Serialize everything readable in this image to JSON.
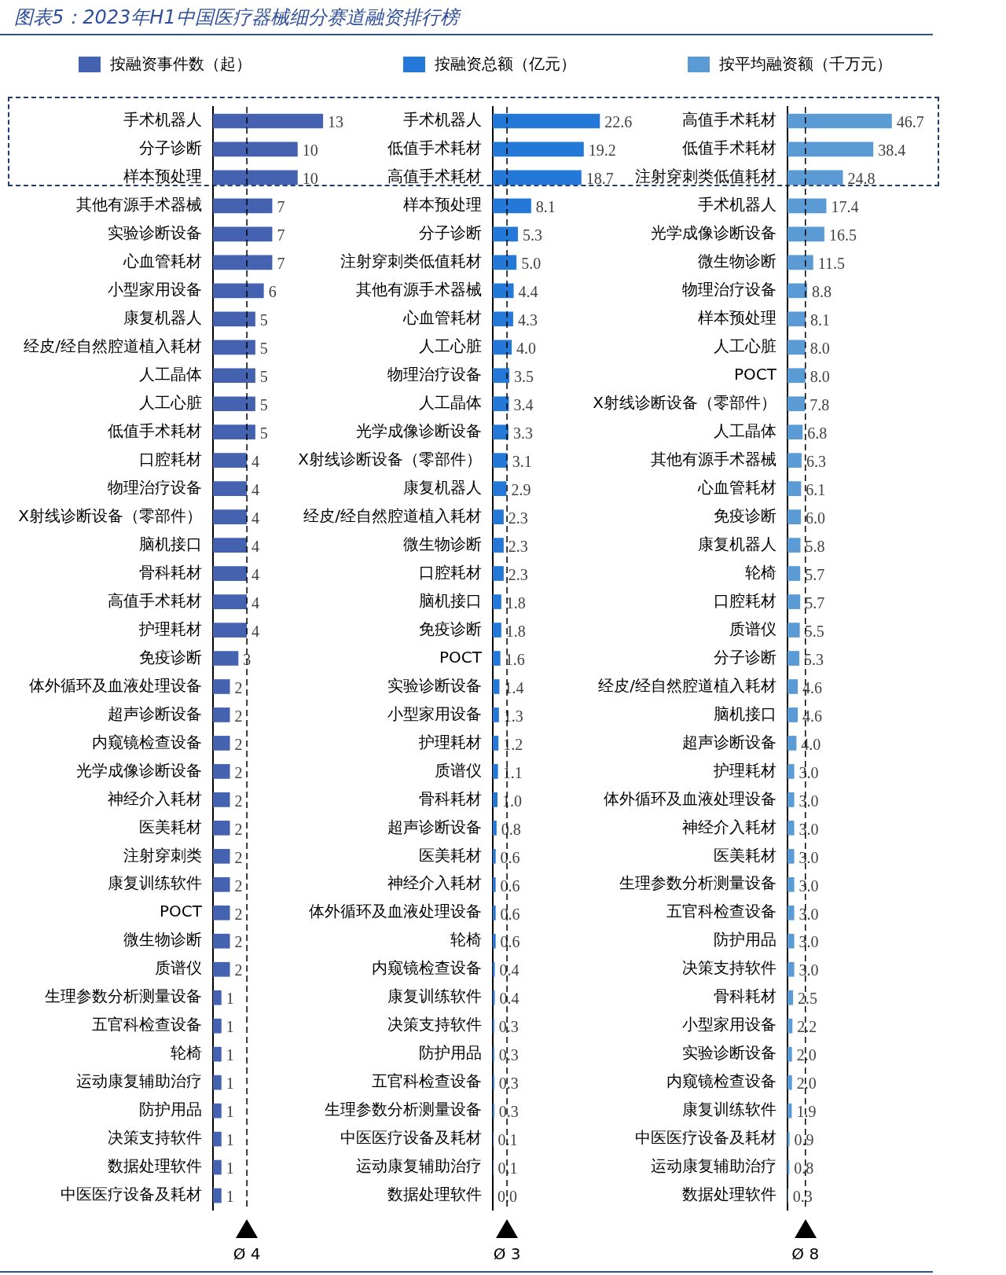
{
  "chart_data": [
    {
      "type": "bar",
      "orientation": "horizontal",
      "title": "图表5：2023年H1中国医疗器械细分赛道融资排行榜",
      "legend": "top",
      "tick_labels": "y",
      "data_labels": true,
      "categories": [
        "手术机器人",
        "分子诊断",
        "样本预处理",
        "其他有源手术器械",
        "实验诊断设备",
        "心血管耗材",
        "小型家用设备",
        "康复机器人",
        "经皮/经自然腔道植入耗材",
        "人工晶体",
        "人工心脏",
        "低值手术耗材",
        "口腔耗材",
        "物理治疗设备",
        "X射线诊断设备（零部件）",
        "脑机接口",
        "骨科耗材",
        "高值手术耗材",
        "护理耗材",
        "免疫诊断",
        "体外循环及血液处理设备",
        "超声诊断设备",
        "内窥镜检查设备",
        "光学成像诊断设备",
        "神经介入耗材",
        "医美耗材",
        "注射穿刺类",
        "康复训练软件",
        "POCT",
        "微生物诊断",
        "质谱仪",
        "生理参数分析测量设备",
        "五官科检查设备",
        "轮椅",
        "运动康复辅助治疗",
        "防护用品",
        "决策支持软件",
        "数据处理软件",
        "中医医疗设备及耗材"
      ],
      "series": [
        {
          "name": "按融资事件数（起）",
          "color": "#4462b0",
          "values": [
            13,
            10,
            10,
            7,
            7,
            7,
            6,
            5,
            5,
            5,
            5,
            5,
            4,
            4,
            4,
            4,
            4,
            4,
            4,
            3,
            2,
            2,
            2,
            2,
            2,
            2,
            2,
            2,
            2,
            2,
            2,
            1,
            1,
            1,
            1,
            1,
            1,
            1,
            1
          ]
        }
      ],
      "ref_lines": [
        {
          "axis": "x",
          "value": 4,
          "label": "Ø 4",
          "line_style": "dashed"
        }
      ]
    },
    {
      "type": "bar",
      "orientation": "horizontal",
      "legend": "top",
      "tick_labels": "y",
      "categories": [
        "手术机器人",
        "低值手术耗材",
        "高值手术耗材",
        "样本预处理",
        "分子诊断",
        "注射穿刺类低值耗材",
        "其他有源手术器械",
        "心血管耗材",
        "人工心脏",
        "物理治疗设备",
        "人工晶体",
        "光学成像诊断设备",
        "X射线诊断设备（零部件）",
        "康复机器人",
        "经皮/经自然腔道植入耗材",
        "微生物诊断",
        "口腔耗材",
        "脑机接口",
        "免疫诊断",
        "POCT",
        "实验诊断设备",
        "小型家用设备",
        "护理耗材",
        "质谱仪",
        "骨科耗材",
        "超声诊断设备",
        "医美耗材",
        "神经介入耗材",
        "体外循环及血液处理设备",
        "轮椅",
        "内窥镜检查设备",
        "康复训练软件",
        "决策支持软件",
        "防护用品",
        "五官科检查设备",
        "生理参数分析测量设备",
        "中医医疗设备及耗材",
        "运动康复辅助治疗",
        "数据处理软件"
      ],
      "series": [
        {
          "name": "按融资总额（亿元）",
          "color": "#2478d8",
          "values": [
            22.6,
            19.2,
            18.7,
            8.1,
            5.3,
            5.0,
            4.4,
            4.3,
            4.0,
            3.5,
            3.4,
            3.3,
            3.1,
            2.9,
            2.3,
            2.3,
            2.3,
            1.8,
            1.8,
            1.6,
            1.4,
            1.3,
            1.2,
            1.1,
            1.0,
            0.8,
            0.6,
            0.6,
            0.6,
            0.6,
            0.4,
            0.4,
            0.3,
            0.3,
            0.3,
            0.3,
            0.1,
            0.1,
            0.0
          ],
          "value_labels": [
            "22.6",
            "19.2",
            "18.7",
            "8.1",
            "5.3",
            "5.0",
            "4.4",
            "4.3",
            "4.0",
            "3.5",
            "3.4",
            "3.3",
            "3.1",
            "2.9",
            "2.3",
            "2.3",
            "2.3",
            "1.8",
            "1.8",
            "1.6",
            "1.4",
            "1.3",
            "1.2",
            "1.1",
            "1.0",
            "0.8",
            "0.6",
            "0.6",
            "0.6",
            "0.6",
            "0.4",
            "0.4",
            "0.3",
            "0.3",
            "0.3",
            "0.3",
            "0.1",
            "0.1",
            "0.0"
          ]
        }
      ],
      "ref_lines": [
        {
          "axis": "x",
          "value": 3,
          "label": "Ø 3",
          "line_style": "dashed"
        }
      ]
    },
    {
      "type": "bar",
      "orientation": "horizontal",
      "legend": "top",
      "tick_labels": "y",
      "categories": [
        "高值手术耗材",
        "低值手术耗材",
        "注射穿刺类低值耗材",
        "手术机器人",
        "光学成像诊断设备",
        "微生物诊断",
        "物理治疗设备",
        "样本预处理",
        "人工心脏",
        "POCT",
        "X射线诊断设备（零部件）",
        "人工晶体",
        "其他有源手术器械",
        "心血管耗材",
        "免疫诊断",
        "康复机器人",
        "轮椅",
        "口腔耗材",
        "质谱仪",
        "分子诊断",
        "经皮/经自然腔道植入耗材",
        "脑机接口",
        "超声诊断设备",
        "护理耗材",
        "体外循环及血液处理设备",
        "神经介入耗材",
        "医美耗材",
        "生理参数分析测量设备",
        "五官科检查设备",
        "防护用品",
        "决策支持软件",
        "骨科耗材",
        "小型家用设备",
        "实验诊断设备",
        "内窥镜检查设备",
        "康复训练软件",
        "中医医疗设备及耗材",
        "运动康复辅助治疗",
        "数据处理软件"
      ],
      "series": [
        {
          "name": "按平均融资额（千万元）",
          "color": "#5b9bd5",
          "values": [
            46.7,
            38.4,
            24.8,
            17.4,
            16.5,
            11.5,
            8.8,
            8.1,
            8.0,
            8.0,
            7.8,
            6.8,
            6.3,
            6.1,
            6.0,
            5.8,
            5.7,
            5.7,
            5.5,
            5.3,
            4.6,
            4.6,
            4.0,
            3.0,
            3.0,
            3.0,
            3.0,
            3.0,
            3.0,
            3.0,
            3.0,
            2.5,
            2.2,
            2.0,
            2.0,
            1.9,
            0.9,
            0.8,
            0.3
          ],
          "value_labels": [
            "46.7",
            "38.4",
            "24.8",
            "17.4",
            "16.5",
            "11.5",
            "8.8",
            "8.1",
            "8.0",
            "8.0",
            "7.8",
            "6.8",
            "6.3",
            "6.1",
            "6.0",
            "5.8",
            "5.7",
            "5.7",
            "5.5",
            "5.3",
            "4.6",
            "4.6",
            "4.0",
            "3.0",
            "3.0",
            "3.0",
            "3.0",
            "3.0",
            "3.0",
            "3.0",
            "3.0",
            "2.5",
            "2.2",
            "2.0",
            "2.0",
            "1.9",
            "0.9",
            "0.8",
            "0.3"
          ]
        }
      ],
      "ref_lines": [
        {
          "axis": "x",
          "value": 8,
          "label": "Ø 8",
          "line_style": "dashed"
        }
      ]
    }
  ]
}
